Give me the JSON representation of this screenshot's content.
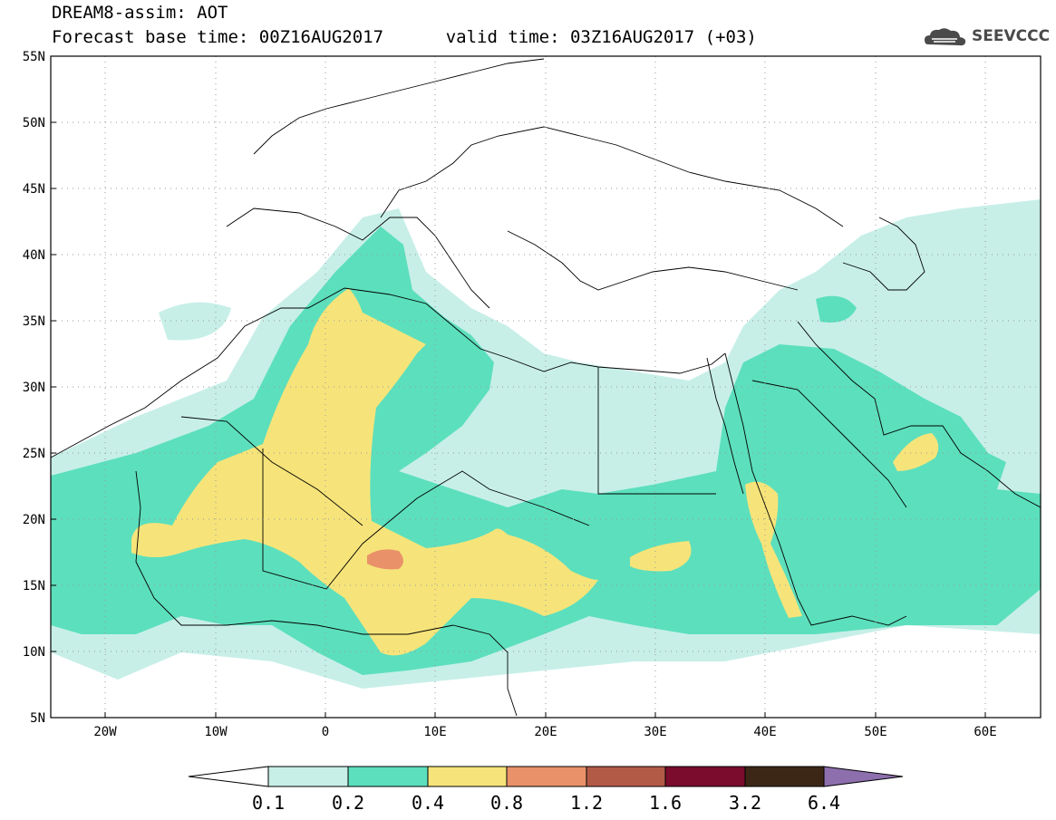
{
  "header": {
    "title": "DREAM8-assim: AOT",
    "base_time_label": "Forecast base time: 00Z16AUG2017",
    "valid_time_label": "valid time: 03Z16AUG2017 (+03)"
  },
  "logo": {
    "text": "SEEVCCC",
    "icon": "cloud-logo-icon"
  },
  "map": {
    "projection": "lat-lon",
    "lon_range": [
      -25,
      65
    ],
    "lat_range": [
      5,
      55
    ],
    "lon_ticks": [
      "20W",
      "10W",
      "0",
      "10E",
      "20E",
      "30E",
      "40E",
      "50E",
      "60E"
    ],
    "lat_ticks": [
      "55N",
      "50N",
      "45N",
      "40N",
      "35N",
      "30N",
      "25N",
      "20N",
      "15N",
      "10N",
      "5N"
    ],
    "grid": "dotted"
  },
  "colorbar": {
    "labels": [
      "0.1",
      "0.2",
      "0.4",
      "0.8",
      "1.2",
      "1.6",
      "3.2",
      "6.4"
    ],
    "colors": [
      "#ffffff",
      "#c7efe8",
      "#5cdfbd",
      "#f6e47a",
      "#e9926a",
      "#b35a47",
      "#7b0c2e",
      "#3c2716",
      "#8d6fae"
    ]
  }
}
